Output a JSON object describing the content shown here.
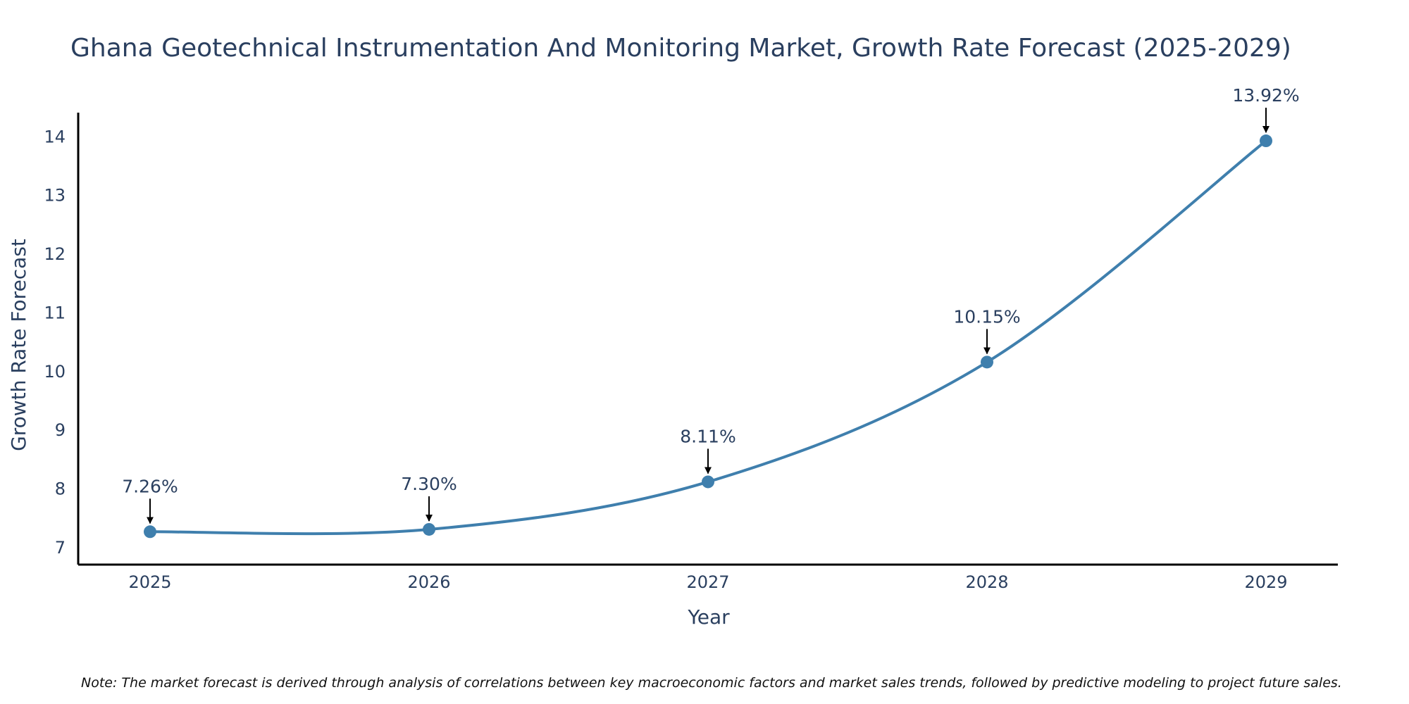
{
  "chart_data": {
    "type": "line",
    "title": "Ghana Geotechnical Instrumentation And Monitoring Market, Growth Rate Forecast (2025-2029)",
    "xlabel": "Year",
    "ylabel": "Growth Rate Forecast",
    "categories": [
      "2025",
      "2026",
      "2027",
      "2028",
      "2029"
    ],
    "values": [
      7.26,
      7.3,
      8.11,
      10.15,
      13.92
    ],
    "data_labels": [
      "7.26%",
      "7.30%",
      "8.11%",
      "10.15%",
      "13.92%"
    ],
    "y_ticks": [
      7,
      8,
      9,
      10,
      11,
      12,
      13,
      14
    ],
    "ylim": [
      6.7,
      14.4
    ],
    "grid": false,
    "legend": "none",
    "line_color": "#3f7fad",
    "marker_color": "#3f7fad",
    "note": "Note: The market forecast is derived through analysis of correlations between key macroeconomic factors and market sales trends, followed by predictive modeling to project future sales."
  }
}
